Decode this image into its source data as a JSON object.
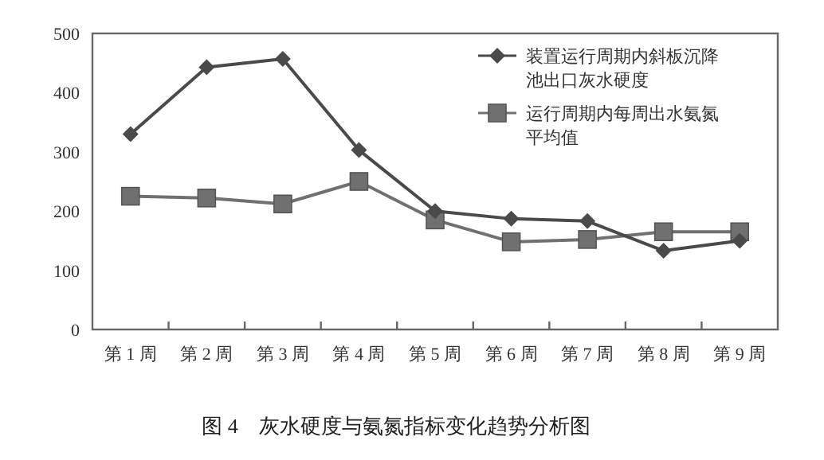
{
  "chart_data": {
    "type": "line",
    "title": "图 4　灰水硬度与氨氮指标变化趋势分析图",
    "categories": [
      "第 1 周",
      "第 2 周",
      "第 3 周",
      "第 4 周",
      "第 5 周",
      "第 6 周",
      "第 7 周",
      "第 8 周",
      "第 9 周"
    ],
    "series": [
      {
        "name": "装置运行周期内斜板沉降池出口灰水硬度",
        "color": "#4a4a4a",
        "marker": "diamond",
        "values": [
          330,
          443,
          457,
          303,
          200,
          187,
          183,
          133,
          150
        ]
      },
      {
        "name": "运行周期内每周出水氨氮平均值",
        "color": "#707070",
        "marker": "square",
        "values": [
          225,
          222,
          212,
          250,
          185,
          148,
          152,
          165,
          165
        ]
      }
    ],
    "ylim": [
      0,
      500
    ],
    "yticks": [
      0,
      100,
      200,
      300,
      400,
      500
    ],
    "legend": "top right",
    "line_style": "solid"
  }
}
